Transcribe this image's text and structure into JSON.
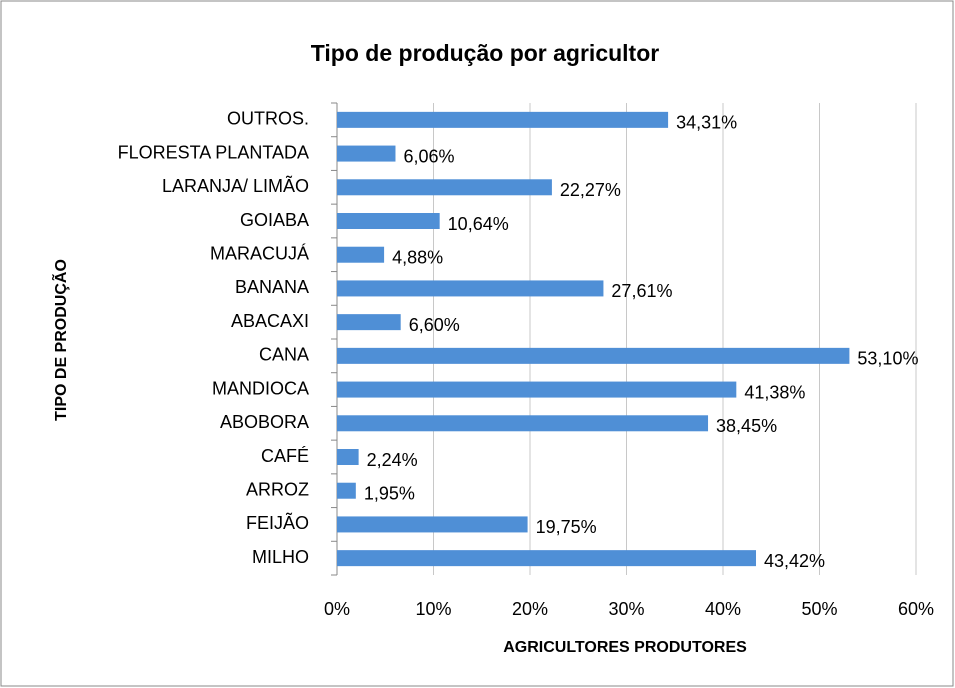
{
  "chart_data": {
    "type": "bar",
    "orientation": "horizontal",
    "title": "Tipo de produção por agricultor",
    "xlabel": "AGRICULTORES PRODUTORES",
    "ylabel": "TIPO DE PRODUÇÃO",
    "categories": [
      "OUTROS.",
      "FLORESTA PLANTADA",
      "LARANJA/ LIMÃO",
      "GOIABA",
      "MARACUJÁ",
      "BANANA",
      "ABACAXI",
      "CANA",
      "MANDIOCA",
      "ABOBORA",
      "CAFÉ",
      "ARROZ",
      "FEIJÃO",
      "MILHO"
    ],
    "values": [
      34.31,
      6.06,
      22.27,
      10.64,
      4.88,
      27.61,
      6.6,
      53.1,
      41.38,
      38.45,
      2.24,
      1.95,
      19.75,
      43.42
    ],
    "value_labels": [
      "34,31%",
      "6,06%",
      "22,27%",
      "10,64%",
      "4,88%",
      "27,61%",
      "6,60%",
      "53,10%",
      "41,38%",
      "38,45%",
      "2,24%",
      "1,95%",
      "19,75%",
      "43,42%"
    ],
    "color": "#4f8fd6",
    "xlim": [
      0,
      60
    ],
    "xticks": [
      {
        "value": 0,
        "label": "0%"
      },
      {
        "value": 10,
        "label": "10%"
      },
      {
        "value": 20,
        "label": "20%"
      },
      {
        "value": 30,
        "label": "30%"
      },
      {
        "value": 40,
        "label": "40%"
      },
      {
        "value": 50,
        "label": "50%"
      },
      {
        "value": 60,
        "label": "60%"
      }
    ],
    "grid": true
  }
}
